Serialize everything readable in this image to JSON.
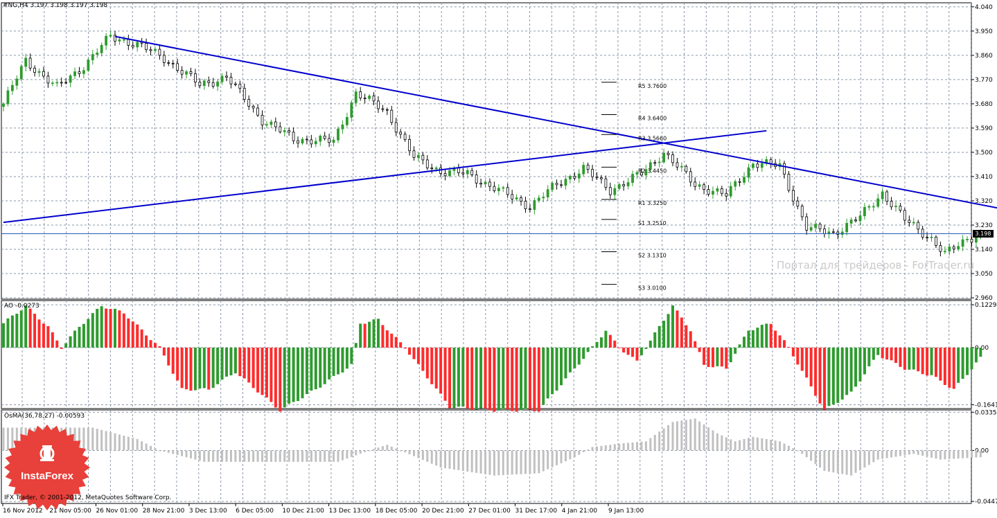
{
  "header": {
    "price_info": "#NG,H4  3.197 3.198 3.197 3.198",
    "ao_label": "AO -0.0273",
    "osma_label": "OsMA(36,78,27) -0.00593"
  },
  "current_price": "3.198",
  "watermark": "Портал для трейдеров - ForTrader.ru",
  "copyright": "IFX Trader, © 2001-2012, MetaQuotes Software Corp.",
  "logo": {
    "text": "InstaForex",
    "color": "#e8403a"
  },
  "colors": {
    "grid": "#8a96a8",
    "bull": "#2e9b2e",
    "bear": "#ff2b2b",
    "osma": "#c0c0c0",
    "trendline": "#0000cc",
    "price_line": "#2255bb",
    "pivot": "#000000"
  },
  "chart_data": {
    "type": "candlestick",
    "symbol": "#NG",
    "timeframe": "H4",
    "price_axis": [
      "4.040",
      "3.950",
      "3.860",
      "3.770",
      "3.680",
      "3.590",
      "3.500",
      "3.410",
      "3.320",
      "3.230",
      "3.140",
      "3.050",
      "2.960"
    ],
    "price_ylim": [
      2.955,
      4.055
    ],
    "ao_axis": [
      "0.1229",
      "0.00",
      "-0.1641"
    ],
    "ao_ylim": [
      -0.175,
      0.135
    ],
    "osma_axis": [
      "0.0335",
      "0.00",
      "-0.04473"
    ],
    "osma_ylim": [
      -0.0465,
      0.0355
    ],
    "time_labels": [
      "16 Nov 2012",
      "21 Nov 05:00",
      "26 Nov 01:00",
      "28 Nov 21:00",
      "3 Dec 13:00",
      "6 Dec 05:00",
      "10 Dec 21:00",
      "13 Dec 13:00",
      "18 Dec 05:00",
      "20 Dec 21:00",
      "27 Dec 01:00",
      "31 Dec 17:00",
      "4 Jan 21:00",
      "9 Jan 13:00"
    ],
    "bar_count": 220,
    "close_anchors": [
      [
        0,
        3.68
      ],
      [
        5,
        3.84
      ],
      [
        12,
        3.74
      ],
      [
        18,
        3.82
      ],
      [
        24,
        3.93
      ],
      [
        30,
        3.9
      ],
      [
        36,
        3.85
      ],
      [
        44,
        3.75
      ],
      [
        50,
        3.78
      ],
      [
        58,
        3.62
      ],
      [
        65,
        3.55
      ],
      [
        74,
        3.54
      ],
      [
        79,
        3.72
      ],
      [
        86,
        3.65
      ],
      [
        92,
        3.48
      ],
      [
        98,
        3.43
      ],
      [
        104,
        3.42
      ],
      [
        112,
        3.35
      ],
      [
        118,
        3.3
      ],
      [
        124,
        3.38
      ],
      [
        130,
        3.44
      ],
      [
        136,
        3.36
      ],
      [
        143,
        3.42
      ],
      [
        148,
        3.5
      ],
      [
        155,
        3.38
      ],
      [
        162,
        3.34
      ],
      [
        168,
        3.46
      ],
      [
        174,
        3.45
      ],
      [
        180,
        3.22
      ],
      [
        186,
        3.2
      ],
      [
        192,
        3.26
      ],
      [
        197,
        3.35
      ],
      [
        202,
        3.25
      ],
      [
        208,
        3.18
      ],
      [
        211,
        3.12
      ],
      [
        216,
        3.18
      ],
      [
        219,
        3.198
      ]
    ],
    "last_bar": {
      "open": 3.197,
      "high": 3.198,
      "low": 3.197,
      "close": 3.198
    },
    "pivots": [
      {
        "name": "R5",
        "label": "R5  3.7600",
        "value": 3.76
      },
      {
        "name": "R4",
        "label": "R4  3.6400",
        "value": 3.64
      },
      {
        "name": "R3",
        "label": "R3  3.5660",
        "value": 3.566
      },
      {
        "name": "R2",
        "label": "R2  3.4450",
        "value": 3.445
      },
      {
        "name": "R1",
        "label": "R1  3.3250",
        "value": 3.325
      },
      {
        "name": "S1",
        "label": "S1  3.2510",
        "value": 3.251
      },
      {
        "name": "S2",
        "label": "S2  3.1310",
        "value": 3.131
      },
      {
        "name": "S3",
        "label": "S3  3.0100",
        "value": 3.01
      }
    ],
    "trendlines": [
      {
        "name": "descending",
        "from": [
          25,
          3.93
        ],
        "to": [
          227,
          3.28
        ]
      },
      {
        "name": "ascending",
        "from": [
          0,
          3.24
        ],
        "to": [
          171,
          3.58
        ]
      }
    ],
    "ao_anchors": [
      [
        0,
        0.07
      ],
      [
        5,
        0.12
      ],
      [
        10,
        0.06
      ],
      [
        13,
        0.0
      ],
      [
        17,
        0.06
      ],
      [
        22,
        0.12
      ],
      [
        27,
        0.1
      ],
      [
        35,
        0.0
      ],
      [
        40,
        -0.12
      ],
      [
        46,
        -0.12
      ],
      [
        52,
        -0.07
      ],
      [
        62,
        -0.18
      ],
      [
        70,
        -0.12
      ],
      [
        78,
        -0.05
      ],
      [
        80,
        0.07
      ],
      [
        84,
        0.08
      ],
      [
        90,
        0.0
      ],
      [
        100,
        -0.17
      ],
      [
        110,
        -0.18
      ],
      [
        120,
        -0.18
      ],
      [
        128,
        -0.06
      ],
      [
        132,
        0.0
      ],
      [
        135,
        0.05
      ],
      [
        138,
        0.0
      ],
      [
        142,
        -0.04
      ],
      [
        145,
        0.02
      ],
      [
        150,
        0.12
      ],
      [
        154,
        0.05
      ],
      [
        157,
        -0.05
      ],
      [
        162,
        -0.06
      ],
      [
        167,
        0.05
      ],
      [
        172,
        0.07
      ],
      [
        176,
        0.0
      ],
      [
        184,
        -0.18
      ],
      [
        190,
        -0.13
      ],
      [
        196,
        -0.02
      ],
      [
        202,
        -0.06
      ],
      [
        208,
        -0.08
      ],
      [
        213,
        -0.12
      ],
      [
        219,
        -0.03
      ]
    ],
    "osma_anchors": [
      [
        0,
        0.02
      ],
      [
        10,
        0.02
      ],
      [
        20,
        0.02
      ],
      [
        30,
        0.01
      ],
      [
        35,
        0.0
      ],
      [
        45,
        -0.01
      ],
      [
        55,
        -0.01
      ],
      [
        65,
        -0.01
      ],
      [
        75,
        -0.01
      ],
      [
        82,
        0.0
      ],
      [
        86,
        0.005
      ],
      [
        92,
        -0.005
      ],
      [
        98,
        -0.015
      ],
      [
        110,
        -0.022
      ],
      [
        120,
        -0.02
      ],
      [
        128,
        -0.006
      ],
      [
        132,
        0.003
      ],
      [
        138,
        0.006
      ],
      [
        144,
        0.008
      ],
      [
        150,
        0.025
      ],
      [
        155,
        0.028
      ],
      [
        160,
        0.015
      ],
      [
        164,
        0.008
      ],
      [
        168,
        0.012
      ],
      [
        174,
        0.008
      ],
      [
        178,
        0.0
      ],
      [
        184,
        -0.018
      ],
      [
        190,
        -0.022
      ],
      [
        196,
        -0.008
      ],
      [
        204,
        -0.003
      ],
      [
        210,
        -0.008
      ],
      [
        219,
        -0.006
      ]
    ]
  }
}
